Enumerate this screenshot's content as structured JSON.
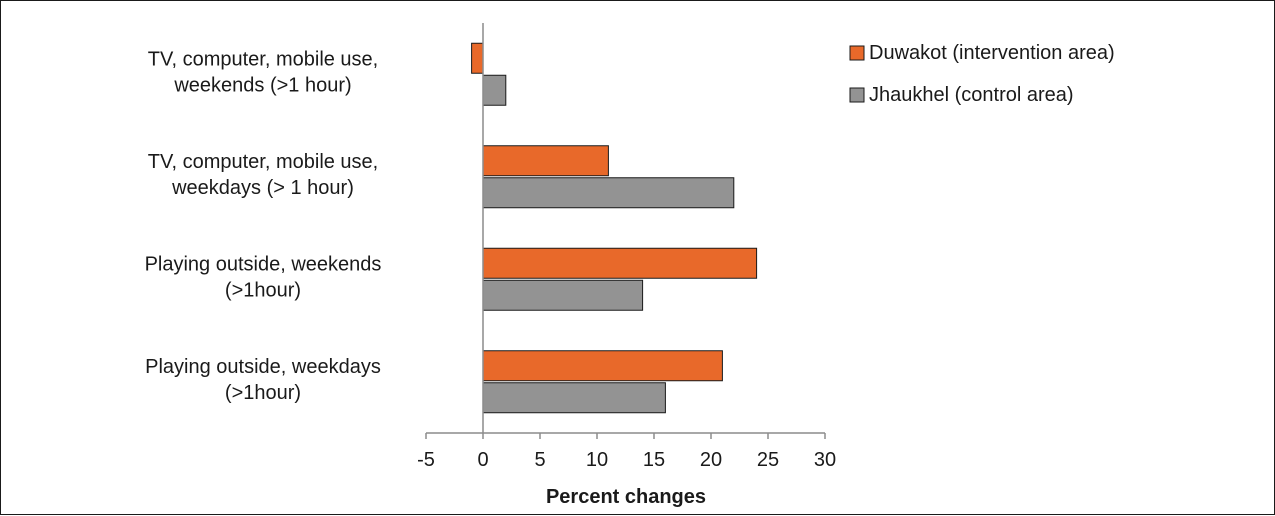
{
  "chart_data": {
    "type": "bar",
    "orientation": "horizontal",
    "categories": [
      [
        "TV, computer, mobile use,",
        "weekends (>1 hour)"
      ],
      [
        "TV, computer, mobile use,",
        "weekdays (> 1 hour)"
      ],
      [
        "Playing outside, weekends",
        "(>1hour)"
      ],
      [
        "Playing outside, weekdays",
        "(>1hour)"
      ]
    ],
    "series": [
      {
        "name": "Duwakot (intervention area)",
        "color": "#E8692A",
        "values": [
          -1,
          11,
          24,
          21
        ]
      },
      {
        "name": "Jhaukhel (control area)",
        "color": "#939393",
        "values": [
          2,
          22,
          14,
          16
        ]
      }
    ],
    "xlabel": "Percent changes",
    "xlim": [
      -5,
      30
    ],
    "xticks": [
      -5,
      0,
      5,
      10,
      15,
      20,
      25,
      30
    ],
    "grid": false,
    "legend_position": "top-right"
  }
}
